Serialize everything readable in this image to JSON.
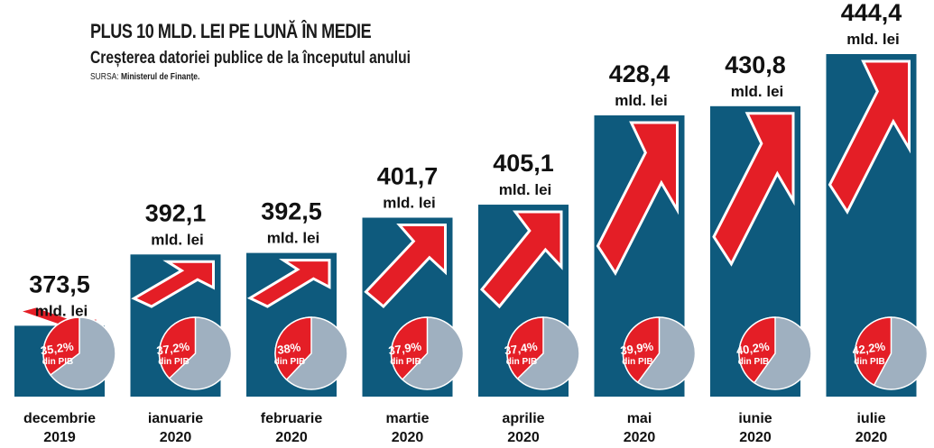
{
  "header": {
    "title": "PLUS 10 MLD. LEI PE LUNĂ ÎN MEDIE",
    "subtitle": "Creșterea datoriei publice de la începutul anului",
    "source_label": "SURSA:",
    "source_name": "Ministerul de Finanțe."
  },
  "colors": {
    "bar": "#0e5a7d",
    "arrow": "#e41e26",
    "pie_rest": "#9fb0c0",
    "pie_share": "#e41e26"
  },
  "chart_data": {
    "type": "bar",
    "unit": "mld. lei",
    "pct_suffix": "din PIB",
    "categories": [
      {
        "month": "decembrie",
        "year": "2019"
      },
      {
        "month": "ianuarie",
        "year": "2020"
      },
      {
        "month": "februarie",
        "year": "2020"
      },
      {
        "month": "martie",
        "year": "2020"
      },
      {
        "month": "aprilie",
        "year": "2020"
      },
      {
        "month": "mai",
        "year": "2020"
      },
      {
        "month": "iunie",
        "year": "2020"
      },
      {
        "month": "iulie",
        "year": "2020"
      }
    ],
    "values": [
      373.5,
      392.1,
      392.5,
      401.7,
      405.1,
      428.4,
      430.8,
      444.4
    ],
    "value_labels": [
      "373,5",
      "392,1",
      "392,5",
      "401,7",
      "405,1",
      "428,4",
      "430,8",
      "444,4"
    ],
    "pct_of_gdp": [
      35.2,
      37.2,
      38,
      37.9,
      37.4,
      39.9,
      40.2,
      42.2
    ],
    "pct_labels": [
      "35,2%",
      "37,2%",
      "38%",
      "37,9%",
      "37,4%",
      "39,9%",
      "40,2%",
      "42,2%"
    ]
  }
}
